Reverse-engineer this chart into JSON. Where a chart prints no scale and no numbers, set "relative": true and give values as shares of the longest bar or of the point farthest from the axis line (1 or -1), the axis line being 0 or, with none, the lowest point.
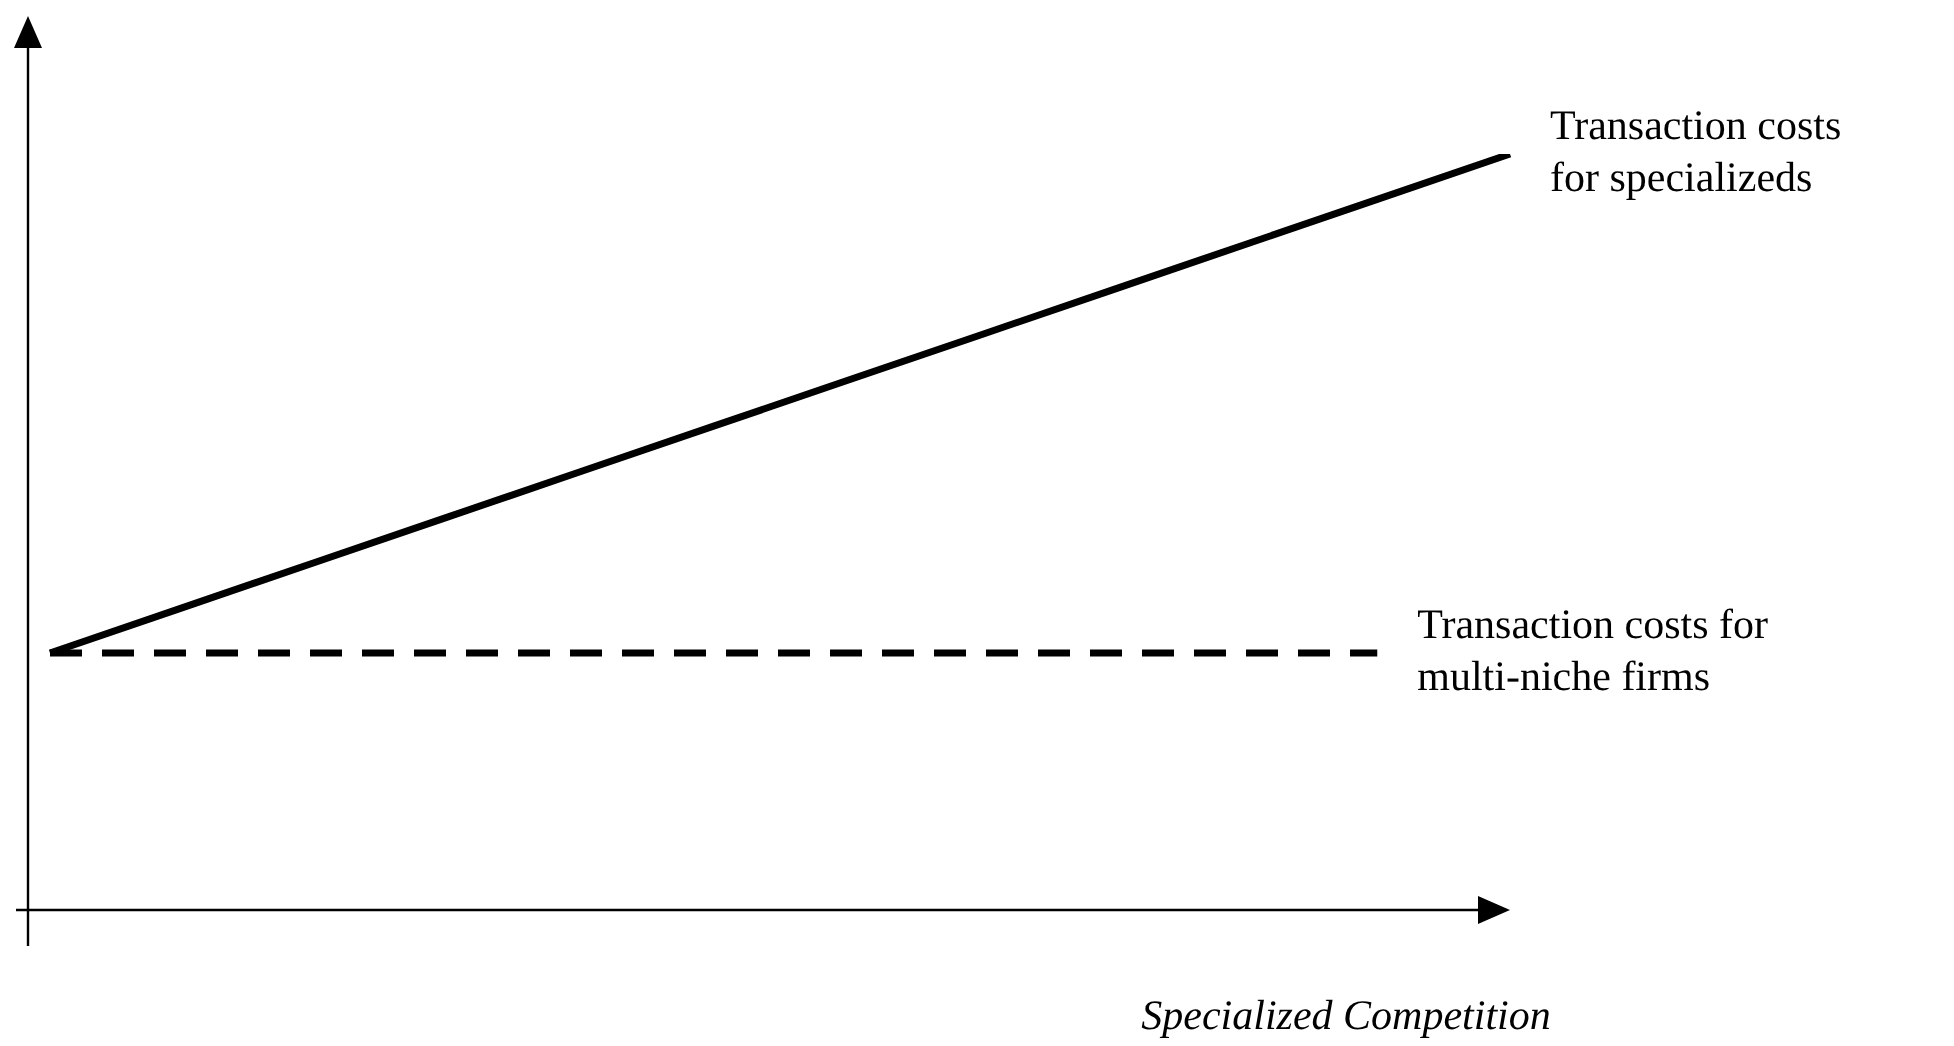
{
  "chart_data": {
    "type": "line",
    "relative": true,
    "xlabel": "Specialized Competition",
    "categories": [
      null,
      null,
      null,
      null,
      null,
      null,
      null,
      null,
      null,
      null,
      null,
      null
    ],
    "legend": false,
    "marker": "none",
    "tick_labels": false,
    "series": [
      {
        "name": "Transaction costs for specializeds",
        "color": "#000000",
        "line_style": "solid",
        "values": [
          0.34,
          0.4,
          0.46,
          0.52,
          0.58,
          0.64,
          0.7,
          0.76,
          0.82,
          0.88,
          0.94,
          1.0
        ]
      },
      {
        "name": "Transaction costs for multi-niche firms",
        "color": "#000000",
        "line_style": "dashed",
        "values": [
          0.34,
          0.34,
          0.34,
          0.34,
          0.34,
          0.34,
          0.34,
          0.34,
          0.34,
          0.34,
          0.34,
          null
        ]
      }
    ]
  }
}
